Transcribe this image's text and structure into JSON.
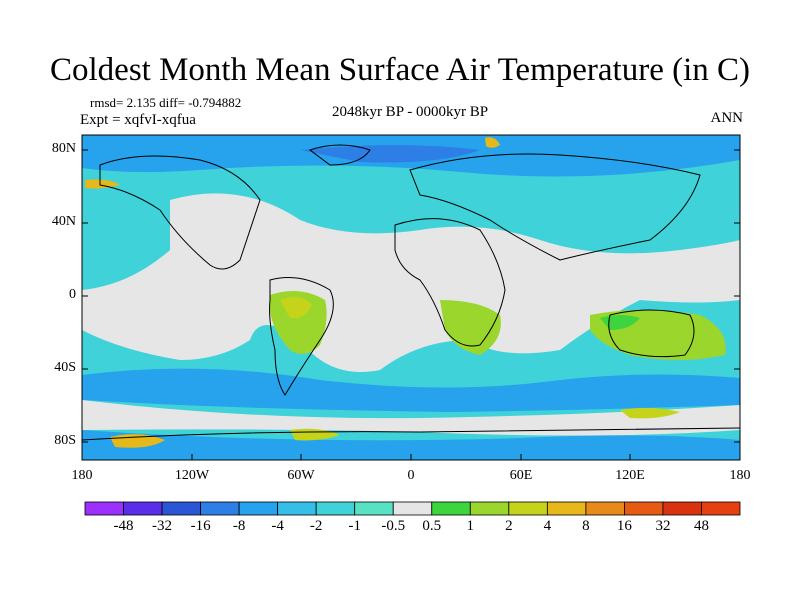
{
  "title": "Coldest Month Mean Surface Air Temperature (in C)",
  "stats": "rmsd= 2.135 diff= -0.794882",
  "experiment": "Expt = xqfvI-xqfua",
  "period": "2048kyr BP - 0000kyr BP",
  "season": "ANN",
  "lat_ticks": [
    "80N",
    "40N",
    "0",
    "40S",
    "80S"
  ],
  "lon_ticks": [
    "180",
    "120W",
    "60W",
    "0",
    "60E",
    "120E",
    "180"
  ],
  "colorbar": {
    "labels": [
      "-48",
      "-32",
      "-16",
      "-8",
      "-4",
      "-2",
      "-1",
      "-0.5",
      "0.5",
      "1",
      "2",
      "4",
      "8",
      "16",
      "32",
      "48"
    ],
    "colors": [
      "#9b30ff",
      "#5a2ee8",
      "#2a56d6",
      "#2d7fe6",
      "#26a3ec",
      "#35bfe8",
      "#3fd3d9",
      "#56e2c3",
      "#e6e6e6",
      "#3dd43d",
      "#9ad62c",
      "#c5d41a",
      "#e6b81a",
      "#e68a1a",
      "#e65a14",
      "#d9320f",
      "#e64010"
    ]
  },
  "colors": {
    "land_outline": "#000000",
    "neutral": "#e6e6e6",
    "cool_light": "#3fd3d9",
    "cool": "#26a3ec",
    "warm_green": "#9ad62c"
  }
}
